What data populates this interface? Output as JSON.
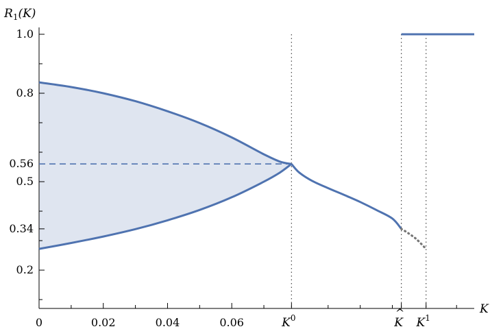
{
  "chart_data": {
    "type": "line",
    "ylabel_main": "R",
    "ylabel_sub": "1",
    "ylabel_arg": "(K)",
    "xlabel": "K",
    "ylim": [
      0.07,
      1.0
    ],
    "xlim": [
      0,
      0.1355
    ],
    "colors": {
      "curve": "#4f73b0",
      "region": "#dfe5f0",
      "dotted": "#777777"
    },
    "y_ticks": [
      {
        "value": 1.0,
        "label": "1.0"
      },
      {
        "value": 0.8,
        "label": "0.8"
      },
      {
        "value": 0.56,
        "label": "0.56"
      },
      {
        "value": 0.5,
        "label": "0.5"
      },
      {
        "value": 0.34,
        "label": "0.34"
      },
      {
        "value": 0.2,
        "label": "0.2"
      }
    ],
    "y_minor_ticks": [
      0.1,
      0.3,
      0.4,
      0.6,
      0.7,
      0.9
    ],
    "x_ticks": [
      {
        "value": 0,
        "label": "0"
      },
      {
        "value": 0.02,
        "label": "0.02"
      },
      {
        "value": 0.04,
        "label": "0.04"
      },
      {
        "value": 0.06,
        "label": "0.06"
      }
    ],
    "x_minor_ticks": [
      0.01,
      0.03,
      0.05,
      0.07,
      0.09,
      0.1,
      0.11,
      0.13
    ],
    "special_x": [
      {
        "value": 0.0786,
        "main": "K",
        "sup": "0",
        "accent": ""
      },
      {
        "value": 0.1128,
        "main": "K",
        "sup": "",
        "accent": "^"
      },
      {
        "value": 0.1205,
        "main": "K",
        "sup": "1",
        "accent": ""
      }
    ],
    "series": [
      {
        "role": "upper-branch",
        "x": [
          0,
          0.01,
          0.02,
          0.03,
          0.04,
          0.05,
          0.06,
          0.07,
          0.075,
          0.0786
        ],
        "y": [
          0.837,
          0.821,
          0.8,
          0.773,
          0.739,
          0.699,
          0.65,
          0.593,
          0.568,
          0.56
        ]
      },
      {
        "role": "lower-branch",
        "x": [
          0,
          0.01,
          0.02,
          0.03,
          0.04,
          0.05,
          0.06,
          0.07,
          0.075,
          0.0786
        ],
        "y": [
          0.272,
          0.292,
          0.314,
          0.339,
          0.369,
          0.404,
          0.447,
          0.5,
          0.531,
          0.56
        ]
      },
      {
        "role": "dashed-center",
        "x": [
          0,
          0.0786
        ],
        "y": [
          0.56,
          0.56
        ]
      },
      {
        "role": "decreasing-branch",
        "x": [
          0.0786,
          0.081,
          0.085,
          0.09,
          0.095,
          0.1,
          0.105,
          0.11,
          0.1128
        ],
        "y": [
          0.56,
          0.531,
          0.503,
          0.478,
          0.455,
          0.431,
          0.404,
          0.375,
          0.34
        ]
      },
      {
        "role": "dotted-unstable",
        "x": [
          0.1128,
          0.115,
          0.1175,
          0.1205
        ],
        "y": [
          0.34,
          0.325,
          0.305,
          0.272
        ]
      },
      {
        "role": "synchronized",
        "x": [
          0.1128,
          0.1355
        ],
        "y": [
          1.0,
          1.0
        ]
      }
    ]
  }
}
